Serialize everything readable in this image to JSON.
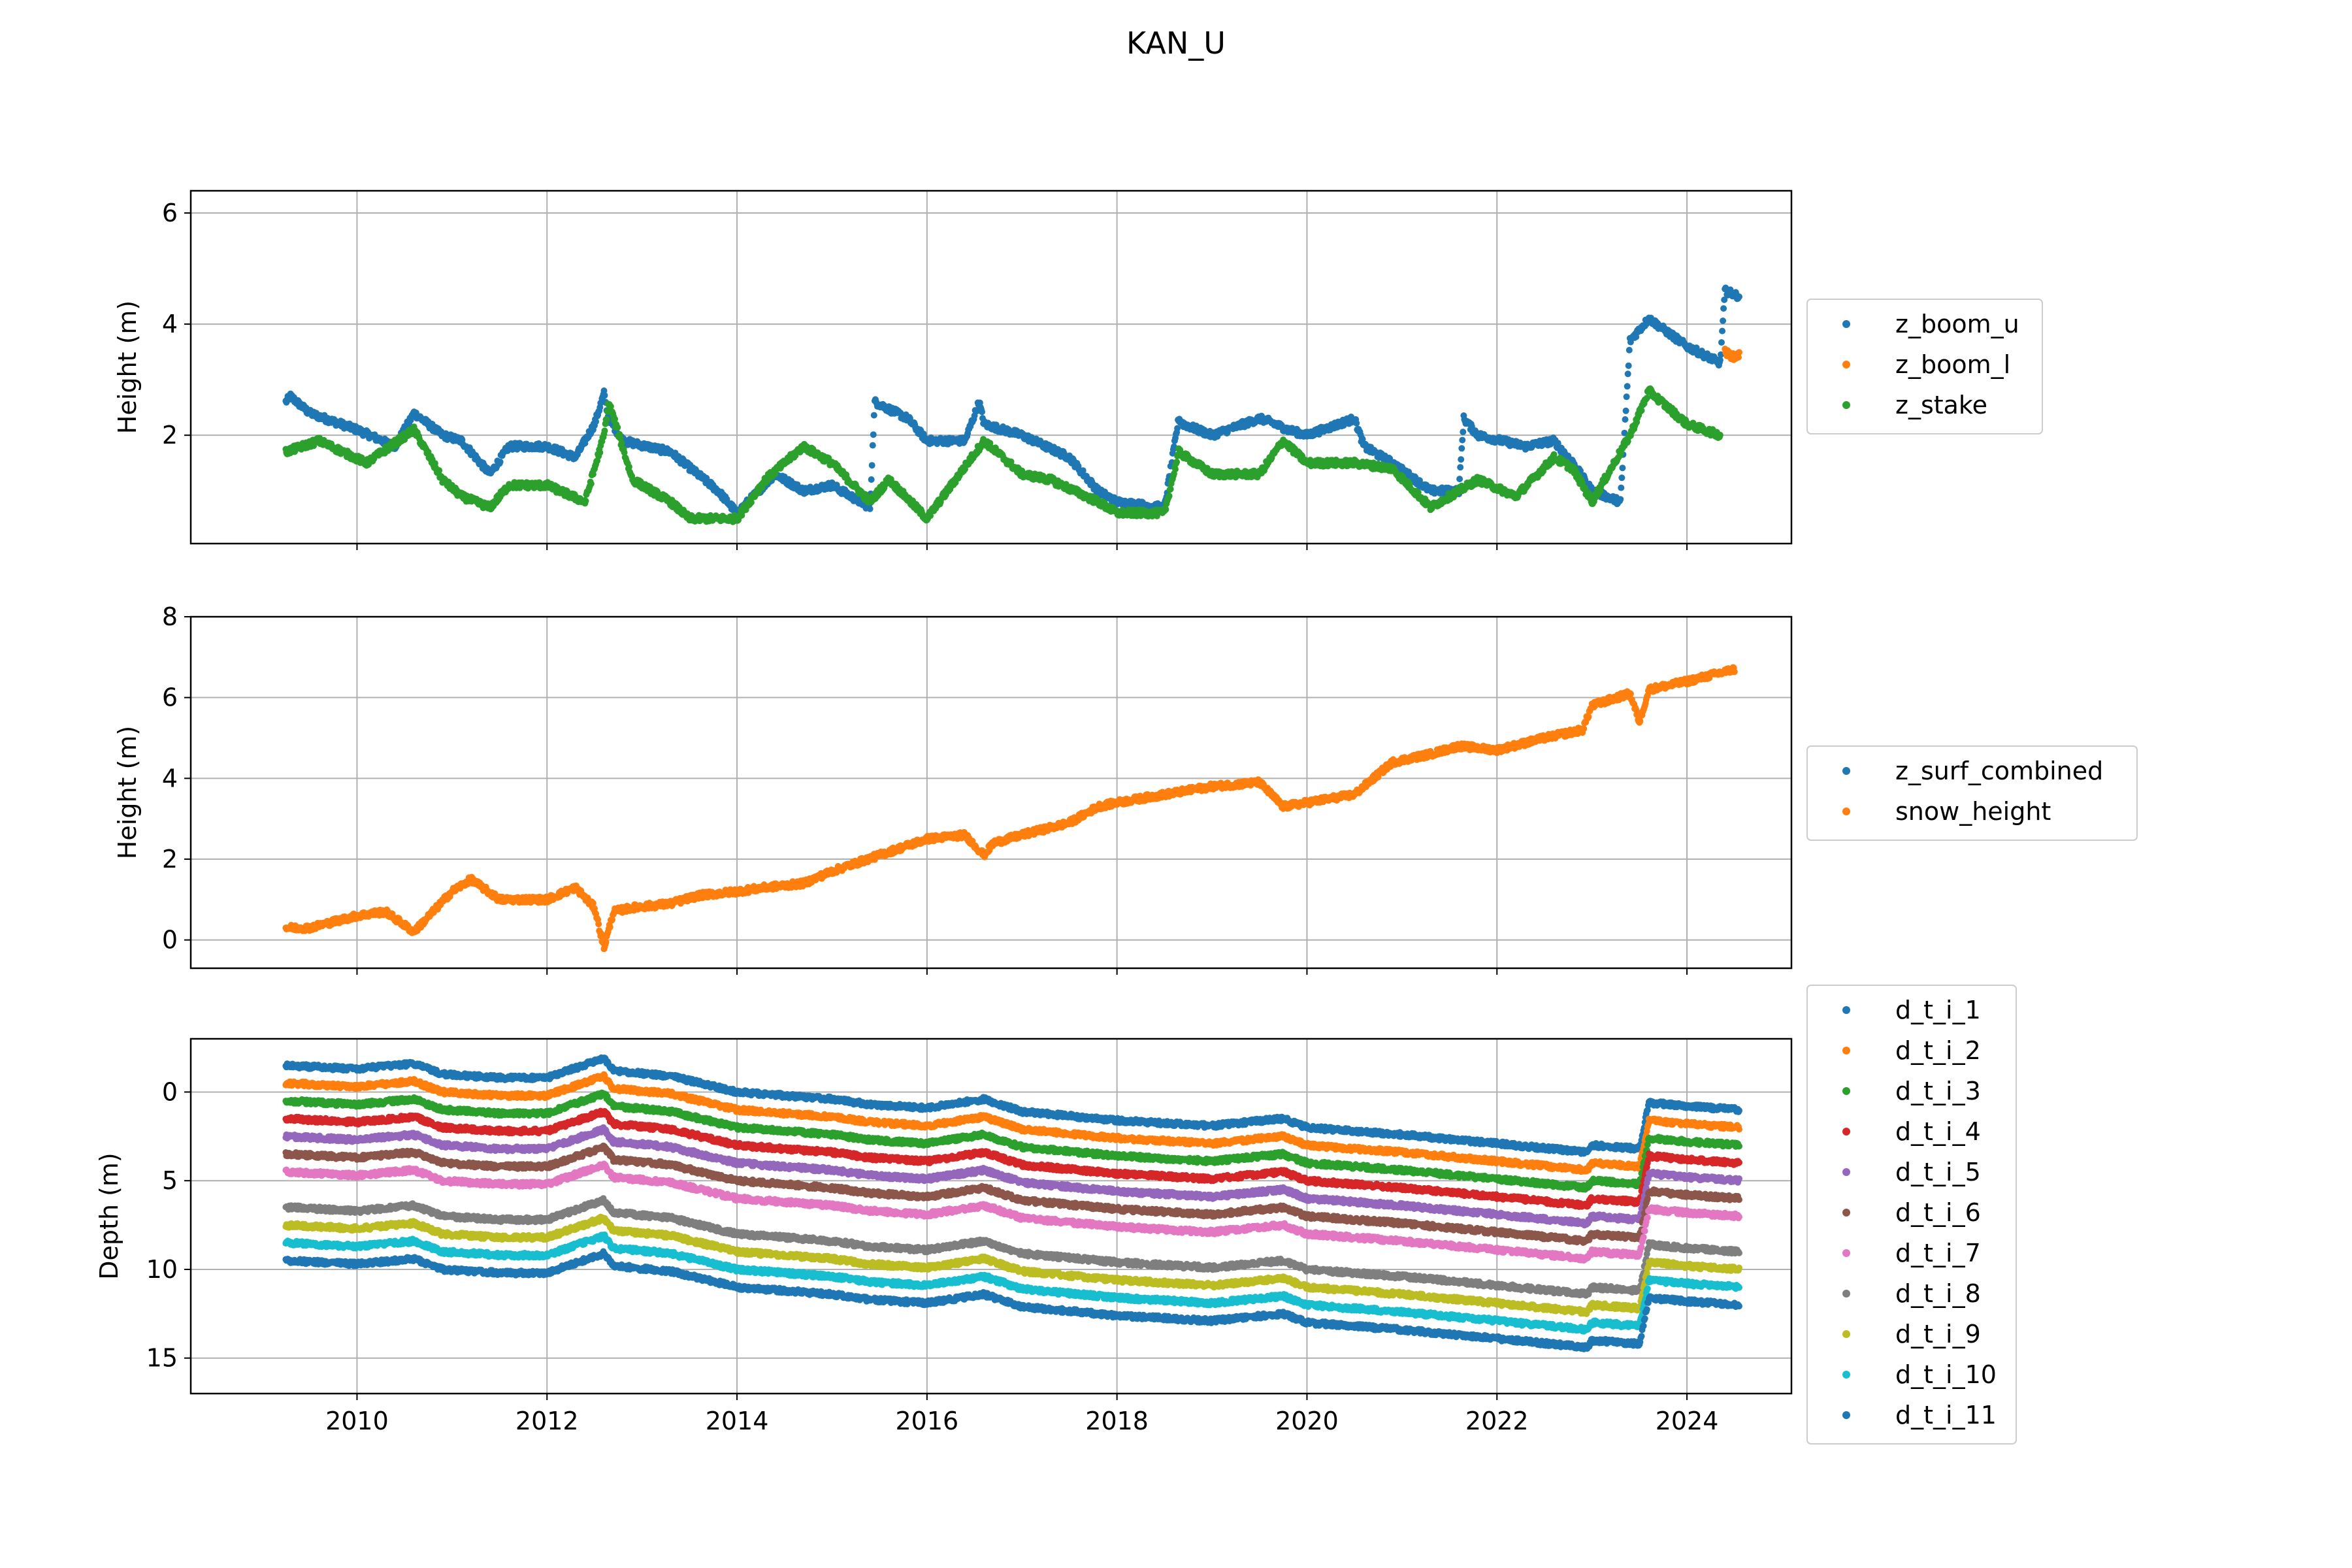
{
  "title": "KAN_U",
  "chart_data": [
    {
      "type": "scatter",
      "ylabel": "Height (m)",
      "xlabel": "",
      "xlim": [
        2008.25,
        2025.1
      ],
      "ylim": [
        0.05,
        6.4
      ],
      "yticks": [
        2,
        4,
        6
      ],
      "xticks": [
        2010,
        2012,
        2014,
        2016,
        2018,
        2020,
        2022,
        2024
      ],
      "show_xtick_labels": false,
      "grid": true,
      "legend_position": "right",
      "series": [
        {
          "name": "z_boom_u",
          "color": "#1f77b4",
          "x": [
            2009.25,
            2009.3,
            2009.5,
            2010.0,
            2010.4,
            2010.6,
            2010.9,
            2011.1,
            2011.4,
            2011.6,
            2012.0,
            2012.3,
            2012.5,
            2012.6,
            2012.65,
            2012.8,
            2013.3,
            2013.8,
            2014.0,
            2014.4,
            2014.7,
            2015.0,
            2015.4,
            2015.45,
            2015.8,
            2016.0,
            2016.4,
            2016.55,
            2016.6,
            2017.0,
            2017.5,
            2017.8,
            2018.0,
            2018.5,
            2018.65,
            2018.7,
            2019.0,
            2019.5,
            2019.6,
            2019.8,
            2020.0,
            2020.5,
            2020.6,
            2020.9,
            2021.3,
            2021.6,
            2021.65,
            2021.8,
            2022.3,
            2022.6,
            2022.8,
            2023.0,
            2023.3,
            2023.4,
            2023.6,
            2024.0,
            2024.35,
            2024.4,
            2024.55
          ],
          "values": [
            2.6,
            2.7,
            2.4,
            2.1,
            1.8,
            2.4,
            2.0,
            1.9,
            1.3,
            1.8,
            1.8,
            1.6,
            2.2,
            2.75,
            2.3,
            1.9,
            1.7,
            1.0,
            0.6,
            1.3,
            1.0,
            1.1,
            0.7,
            2.6,
            2.3,
            1.9,
            1.9,
            2.6,
            2.2,
            2.0,
            1.6,
            1.0,
            0.8,
            0.7,
            2.3,
            2.2,
            2.0,
            2.3,
            2.25,
            2.1,
            2.0,
            2.3,
            1.8,
            1.5,
            1.0,
            1.0,
            2.3,
            2.0,
            1.8,
            1.9,
            1.5,
            1.0,
            0.8,
            3.7,
            4.1,
            3.6,
            3.3,
            4.6,
            4.5
          ]
        },
        {
          "name": "z_boom_l",
          "color": "#ff7f0e",
          "x": [
            2024.4,
            2024.5,
            2024.55
          ],
          "values": [
            3.5,
            3.4,
            3.45
          ]
        },
        {
          "name": "z_stake",
          "color": "#2ca02c",
          "x": [
            2009.25,
            2009.6,
            2010.1,
            2010.6,
            2010.9,
            2011.1,
            2011.4,
            2011.6,
            2012.0,
            2012.4,
            2012.6,
            2012.65,
            2012.9,
            2013.3,
            2013.5,
            2014.0,
            2014.3,
            2014.7,
            2015.0,
            2015.4,
            2015.6,
            2016.0,
            2016.3,
            2016.6,
            2017.0,
            2017.3,
            2017.8,
            2018.0,
            2018.5,
            2018.65,
            2019.0,
            2019.5,
            2019.75,
            2020.0,
            2020.5,
            2020.9,
            2021.3,
            2021.8,
            2022.2,
            2022.6,
            2022.8,
            2023.0,
            2023.4,
            2023.6,
            2024.0,
            2024.35
          ],
          "values": [
            1.7,
            1.9,
            1.5,
            2.1,
            1.2,
            0.9,
            0.7,
            1.1,
            1.1,
            0.8,
            2.0,
            2.6,
            1.2,
            0.8,
            0.5,
            0.5,
            1.2,
            1.8,
            1.5,
            0.8,
            1.2,
            0.5,
            1.2,
            1.9,
            1.3,
            1.2,
            0.8,
            0.6,
            0.6,
            1.7,
            1.3,
            1.3,
            1.9,
            1.5,
            1.5,
            1.4,
            0.7,
            1.2,
            0.9,
            1.6,
            1.4,
            0.8,
            2.0,
            2.8,
            2.2,
            2.0
          ]
        }
      ]
    },
    {
      "type": "scatter",
      "ylabel": "Height (m)",
      "xlabel": "",
      "xlim": [
        2008.25,
        2025.1
      ],
      "ylim": [
        -0.7,
        8.0
      ],
      "yticks": [
        0,
        2,
        4,
        6,
        8
      ],
      "xticks": [
        2010,
        2012,
        2014,
        2016,
        2018,
        2020,
        2022,
        2024
      ],
      "show_xtick_labels": false,
      "grid": true,
      "legend_position": "right",
      "series": [
        {
          "name": "z_surf_combined",
          "color": "#1f77b4",
          "x": [],
          "values": []
        },
        {
          "name": "snow_height",
          "color": "#ff7f0e",
          "x": [
            2009.25,
            2009.5,
            2010.0,
            2010.3,
            2010.6,
            2011.0,
            2011.2,
            2011.5,
            2012.0,
            2012.3,
            2012.5,
            2012.6,
            2012.7,
            2012.9,
            2013.3,
            2013.6,
            2014.0,
            2014.3,
            2014.7,
            2015.0,
            2015.5,
            2016.0,
            2016.4,
            2016.6,
            2016.7,
            2017.0,
            2017.5,
            2017.8,
            2018.0,
            2018.5,
            2019.0,
            2019.5,
            2019.75,
            2020.0,
            2020.5,
            2020.9,
            2021.3,
            2021.6,
            2022.0,
            2022.5,
            2022.9,
            2023.0,
            2023.4,
            2023.5,
            2023.6,
            2024.0,
            2024.5
          ],
          "values": [
            0.3,
            0.3,
            0.6,
            0.7,
            0.2,
            1.2,
            1.5,
            1.0,
            1.0,
            1.3,
            0.8,
            -0.2,
            0.7,
            0.8,
            0.9,
            1.1,
            1.2,
            1.3,
            1.4,
            1.7,
            2.1,
            2.5,
            2.6,
            2.1,
            2.4,
            2.6,
            2.9,
            3.3,
            3.4,
            3.6,
            3.8,
            3.9,
            3.3,
            3.4,
            3.6,
            4.4,
            4.6,
            4.8,
            4.7,
            5.0,
            5.2,
            5.8,
            6.1,
            5.4,
            6.2,
            6.4,
            6.7
          ]
        }
      ]
    },
    {
      "type": "scatter",
      "ylabel": "Depth (m)",
      "xlabel": "",
      "xlim": [
        2008.25,
        2025.1
      ],
      "ylim": [
        17.0,
        -3.0
      ],
      "y_inverted": true,
      "yticks": [
        0,
        5,
        10,
        15
      ],
      "xticks": [
        2010,
        2012,
        2014,
        2016,
        2018,
        2020,
        2022,
        2024
      ],
      "show_xtick_labels": true,
      "grid": true,
      "legend_position": "right",
      "base_profile": {
        "x": [
          2009.25,
          2010.0,
          2010.6,
          2010.9,
          2011.5,
          2012.0,
          2012.6,
          2012.7,
          2013.3,
          2014.0,
          2015.0,
          2015.4,
          2016.0,
          2016.6,
          2017.0,
          2018.0,
          2019.0,
          2019.75,
          2020.0,
          2021.0,
          2022.0,
          2022.95,
          2023.0,
          2023.5,
          2023.6,
          2024.0,
          2024.55
        ],
        "values": [
          -1.5,
          -1.3,
          -1.6,
          -1.0,
          -0.8,
          -0.8,
          -1.9,
          -1.2,
          -0.9,
          0.0,
          0.4,
          0.7,
          0.9,
          0.4,
          1.1,
          1.6,
          1.9,
          1.5,
          2.0,
          2.4,
          2.9,
          3.4,
          3.0,
          3.2,
          0.6,
          0.8,
          1.0
        ]
      },
      "series": [
        {
          "name": "d_t_i_1",
          "color": "#1f77b4",
          "depth_offset": 0.0
        },
        {
          "name": "d_t_i_2",
          "color": "#ff7f0e",
          "depth_offset": 1.0
        },
        {
          "name": "d_t_i_3",
          "color": "#2ca02c",
          "depth_offset": 2.0
        },
        {
          "name": "d_t_i_4",
          "color": "#d62728",
          "depth_offset": 3.0
        },
        {
          "name": "d_t_i_5",
          "color": "#9467bd",
          "depth_offset": 4.0
        },
        {
          "name": "d_t_i_6",
          "color": "#8c564b",
          "depth_offset": 5.0
        },
        {
          "name": "d_t_i_7",
          "color": "#e377c2",
          "depth_offset": 6.0
        },
        {
          "name": "d_t_i_8",
          "color": "#7f7f7f",
          "depth_offset": 8.0
        },
        {
          "name": "d_t_i_9",
          "color": "#bcbd22",
          "depth_offset": 9.0
        },
        {
          "name": "d_t_i_10",
          "color": "#17becf",
          "depth_offset": 10.0
        },
        {
          "name": "d_t_i_11",
          "color": "#1f77b4",
          "depth_offset": 11.0
        }
      ]
    }
  ]
}
